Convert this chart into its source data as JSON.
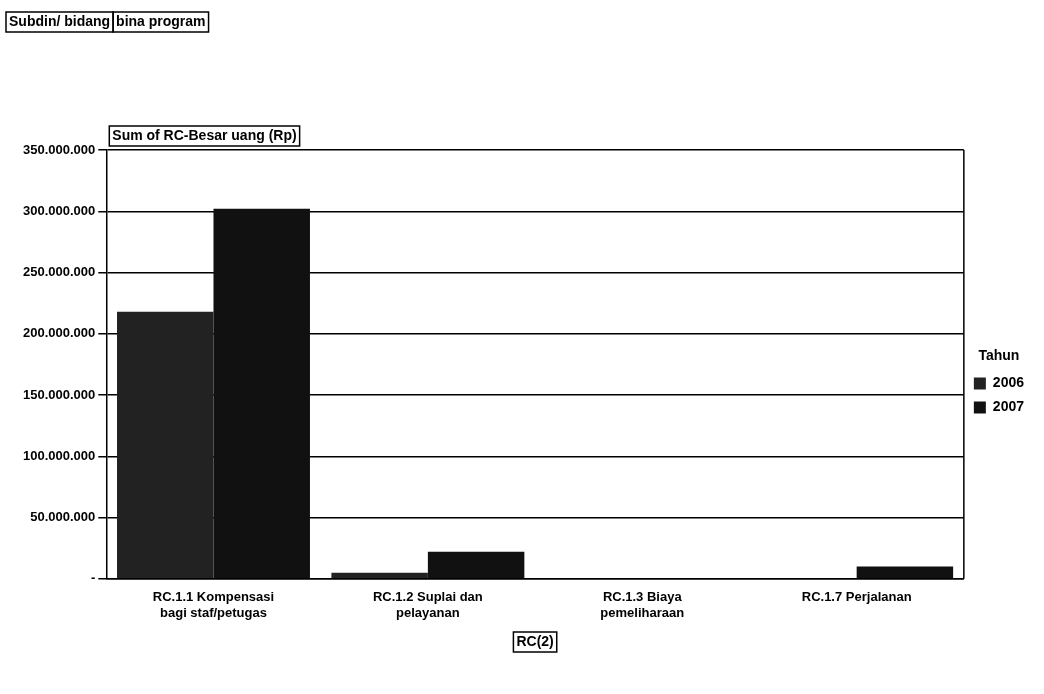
{
  "chart_data": {
    "type": "bar",
    "title": "Sum of RC-Besar uang (Rp)",
    "xlabel": "RC(2)",
    "legend_title": "Tahun",
    "annotations": [
      "Subdin/ bidang",
      "bina program"
    ],
    "categories": [
      "RC.1.1 Kompensasi bagi staf/petugas",
      "RC.1.2 Suplai dan pelayanan",
      "RC.1.3 Biaya pemeliharaan",
      "RC.1.7 Perjalanan"
    ],
    "series": [
      {
        "name": "2006",
        "color": "#222222",
        "values": [
          218000000,
          5000000,
          null,
          0
        ]
      },
      {
        "name": "2007",
        "color": "#111111",
        "values": [
          302000000,
          22000000,
          0,
          10000000
        ]
      }
    ],
    "ylim": [
      0,
      350000000
    ],
    "yticks": [
      {
        "value": 0,
        "label": "-"
      },
      {
        "value": 50000000,
        "label": "50.000.000"
      },
      {
        "value": 100000000,
        "label": "100.000.000"
      },
      {
        "value": 150000000,
        "label": "150.000.000"
      },
      {
        "value": 200000000,
        "label": "200.000.000"
      },
      {
        "value": 250000000,
        "label": "250.000.000"
      },
      {
        "value": 300000000,
        "label": "300.000.000"
      },
      {
        "value": 350000000,
        "label": "350.000.000"
      }
    ],
    "grid": "y",
    "legend": "right"
  }
}
